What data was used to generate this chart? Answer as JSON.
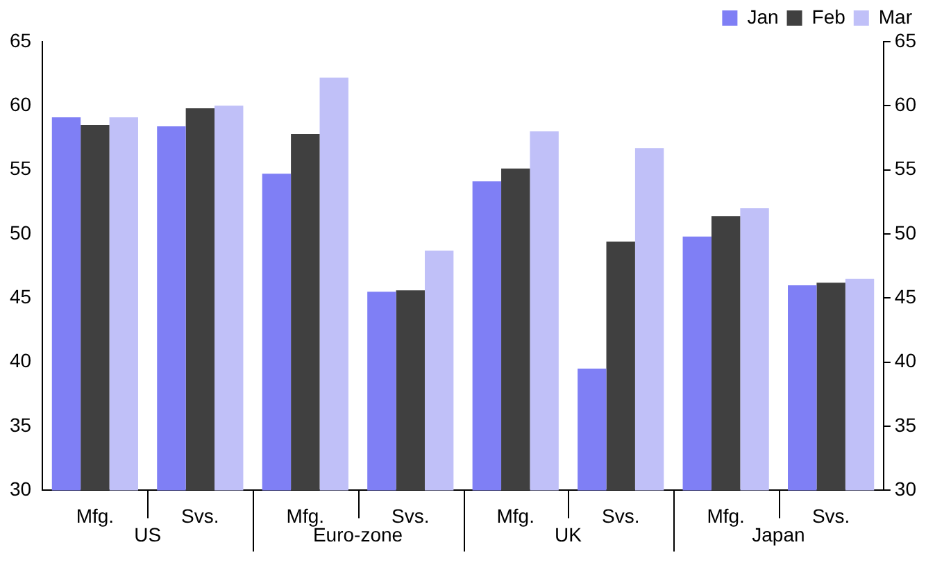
{
  "chart_data": {
    "type": "bar",
    "categories": [
      "Mfg.",
      "Svs.",
      "Mfg.",
      "Svs.",
      "Mfg.",
      "Svs.",
      "Mfg.",
      "Svs."
    ],
    "series": [
      {
        "name": "Jan",
        "color": "#7f7ff5",
        "values": [
          59.1,
          58.4,
          54.7,
          45.5,
          54.1,
          39.5,
          49.8,
          46.0
        ]
      },
      {
        "name": "Feb",
        "color": "#404040",
        "values": [
          58.5,
          59.8,
          57.8,
          45.6,
          55.1,
          49.4,
          51.4,
          46.2
        ]
      },
      {
        "name": "Mar",
        "color": "#c0c0f8",
        "values": [
          59.1,
          60.0,
          62.2,
          48.7,
          58.0,
          56.7,
          52.0,
          46.5
        ]
      }
    ],
    "annotations": [
      "US",
      "Euro-zone",
      "UK",
      "Japan"
    ],
    "ylim": [
      30,
      65
    ],
    "yticks": [
      30,
      35,
      40,
      45,
      50,
      55,
      60,
      65
    ],
    "y2lim": [
      30,
      65
    ],
    "y2ticks": [
      30,
      35,
      40,
      45,
      50,
      55,
      60,
      65
    ],
    "grid": false,
    "legend": "top right"
  }
}
